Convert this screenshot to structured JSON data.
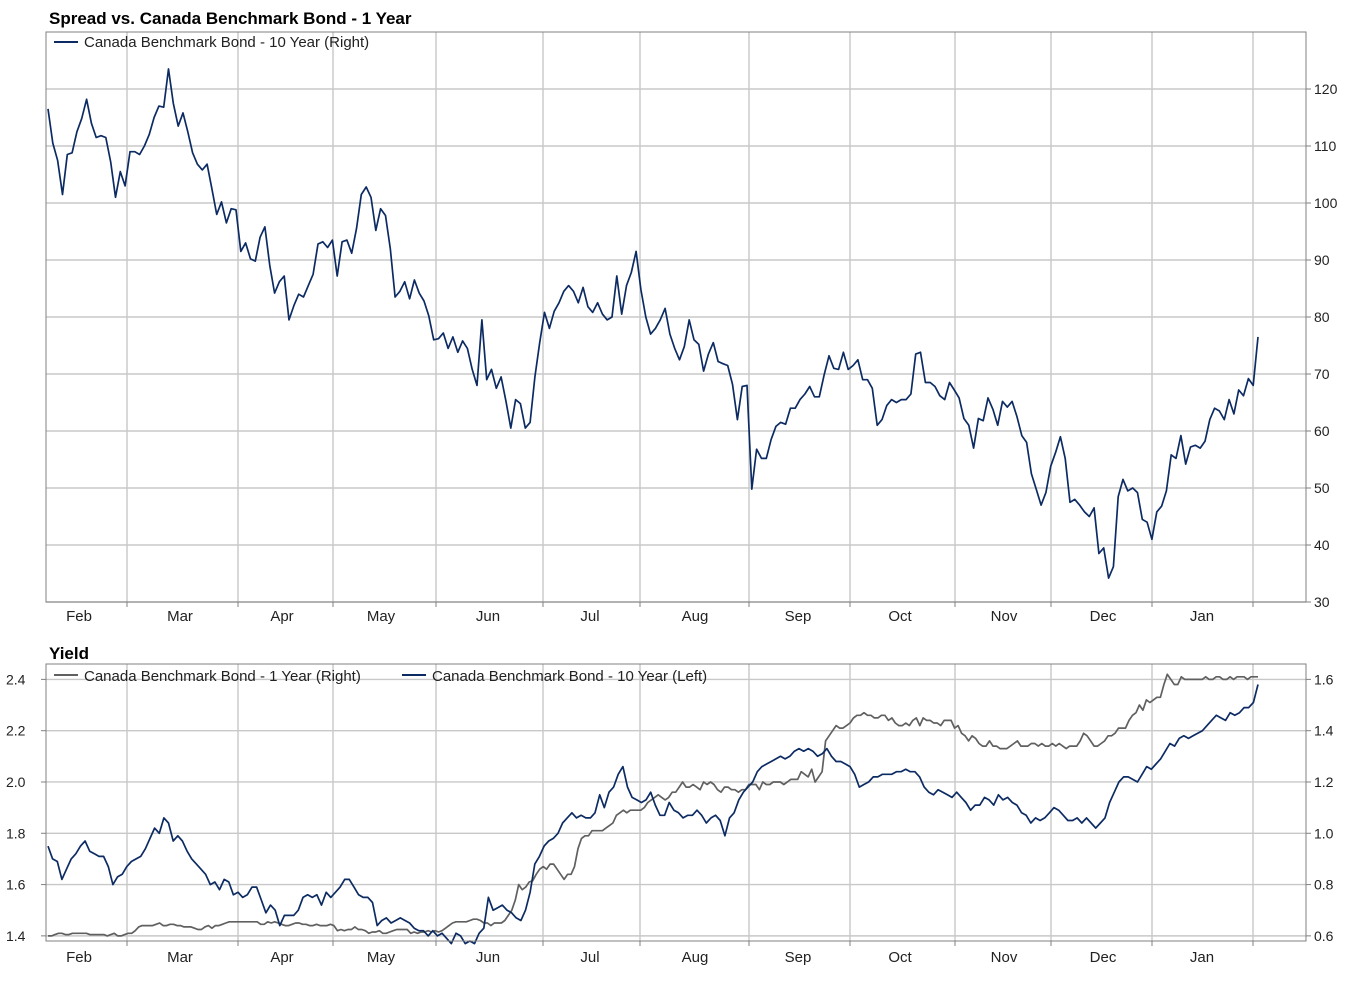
{
  "charts": [
    {
      "title": "Spread vs. Canada Benchmark Bond - 1 Year",
      "legend": [
        "Canada Benchmark Bond - 10 Year (Right)"
      ]
    },
    {
      "title": "Yield",
      "legend": [
        "Canada Benchmark Bond - 1 Year (Right)",
        "Canada Benchmark Bond - 10 Year (Left)"
      ]
    }
  ],
  "colors": {
    "navy": "#0d2b63",
    "gray": "#606060",
    "grid": "#c8c8c8",
    "axis": "#808080"
  },
  "chart_data": [
    {
      "type": "line",
      "title": "Spread vs. Canada Benchmark Bond - 1 Year",
      "xlabel": "",
      "ylabel": "",
      "x_ticks": [
        "Feb",
        "Mar",
        "Apr",
        "May",
        "Jun",
        "Jul",
        "Aug",
        "Sep",
        "Oct",
        "Nov",
        "Dec",
        "Jan"
      ],
      "right_axis": {
        "ticks": [
          30,
          40,
          50,
          60,
          70,
          80,
          90,
          100,
          110,
          120
        ],
        "range": [
          30,
          130
        ]
      },
      "grid": true,
      "legend_position": "top-left",
      "series": [
        {
          "name": "Canada Benchmark Bond - 10 Year (Right)",
          "axis": "right",
          "color": "#0d2b63",
          "values": [
            116.5,
            110.5,
            107.5,
            101.5,
            108.5,
            108.8,
            112.5,
            114.8,
            118.2,
            114,
            111.5,
            111.8,
            111.5,
            107.2,
            101,
            105.5,
            103,
            109,
            109,
            108.5,
            110,
            112,
            115,
            117,
            116.8,
            123.5,
            117.5,
            113.5,
            115.8,
            112.5,
            108.8,
            106.8,
            105.8,
            106.8,
            102.5,
            98,
            100.2,
            96.5,
            99,
            98.8,
            91.5,
            93,
            90.2,
            89.8,
            94,
            95.8,
            89,
            84.2,
            86.2,
            87.2,
            79.5,
            82,
            84,
            83.5,
            85.5,
            87.5,
            92.8,
            93.2,
            92.2,
            93.5,
            87.2,
            93.2,
            93.5,
            91.2,
            95.5,
            101.5,
            102.8,
            101,
            95.2,
            99,
            97.8,
            92,
            83.5,
            84.5,
            86.2,
            83.2,
            86.5,
            84.2,
            82.8,
            80.2,
            76,
            76.2,
            77.2,
            74.5,
            76.5,
            73.8,
            75.8,
            74.5,
            70.8,
            68,
            79.5,
            69,
            70.8,
            67.5,
            69.5,
            65.2,
            60.5,
            65.5,
            64.8,
            60.5,
            61.5,
            69.5,
            75.5,
            80.8,
            78,
            81,
            82.5,
            84.5,
            85.5,
            84.5,
            82.5,
            85.2,
            81.8,
            80.8,
            82.5,
            80.5,
            79.5,
            80,
            87.2,
            80.5,
            85.5,
            87.8,
            91.5,
            84.8,
            80,
            77,
            78,
            79.5,
            81.5,
            77,
            74.5,
            72.5,
            74.8,
            79.5,
            76,
            75.2,
            70.5,
            73.5,
            75.5,
            72.2,
            71.8,
            71.5,
            68.2,
            62,
            67.8,
            68,
            49.8,
            56.8,
            55.2,
            55.2,
            58.5,
            60.8,
            61.5,
            61.2,
            64,
            64,
            65.5,
            66.5,
            67.8,
            66,
            66,
            69.8,
            73.2,
            71,
            70.8,
            73.8,
            70.8,
            71.5,
            72.5,
            69,
            69,
            67.5,
            61,
            62,
            64.5,
            65.5,
            65,
            65.5,
            65.5,
            66.5,
            73.5,
            73.8,
            68.5,
            68.5,
            67.8,
            66.2,
            65.5,
            68.5,
            67.2,
            65.8,
            62.2,
            61,
            57,
            62.2,
            61.8,
            65.8,
            63.8,
            61,
            65.2,
            64.2,
            65.2,
            62.5,
            59.2,
            58,
            52.5,
            49.8,
            47,
            49.2,
            53.8,
            56.2,
            59,
            55.2,
            47.5,
            48,
            47,
            45.8,
            45,
            46.5,
            38.5,
            39.5,
            34.2,
            36.2,
            48.5,
            51.5,
            49.5,
            50,
            49.2,
            44.5,
            44,
            41,
            45.8,
            46.8,
            49.5,
            55.8,
            55.2,
            59.2,
            54.2,
            57.2,
            57.5,
            57,
            58.2,
            62,
            64,
            63.5,
            62,
            65.5,
            63,
            67.2,
            66.2,
            69.2,
            68,
            76.5
          ]
        }
      ]
    },
    {
      "type": "line",
      "title": "Yield",
      "xlabel": "",
      "ylabel": "",
      "x_ticks": [
        "Feb",
        "Mar",
        "Apr",
        "May",
        "Jun",
        "Jul",
        "Aug",
        "Sep",
        "Oct",
        "Nov",
        "Dec",
        "Jan"
      ],
      "left_axis": {
        "ticks": [
          1.4,
          1.6,
          1.8,
          2.0,
          2.2,
          2.4
        ],
        "range": [
          1.38,
          2.46
        ]
      },
      "right_axis": {
        "ticks": [
          0.6,
          0.8,
          1.0,
          1.2,
          1.4,
          1.6
        ],
        "range": [
          0.58,
          1.66
        ]
      },
      "grid": true,
      "legend_position": "top-left",
      "series": [
        {
          "name": "Canada Benchmark Bond - 1 Year (Right)",
          "axis": "right",
          "color": "#606060",
          "values": [
            0.6,
            0.6,
            0.605,
            0.61,
            0.61,
            0.605,
            0.605,
            0.61,
            0.61,
            0.61,
            0.61,
            0.61,
            0.605,
            0.605,
            0.605,
            0.605,
            0.605,
            0.6,
            0.605,
            0.61,
            0.6,
            0.6,
            0.605,
            0.61,
            0.61,
            0.62,
            0.635,
            0.64,
            0.64,
            0.64,
            0.64,
            0.645,
            0.65,
            0.64,
            0.64,
            0.645,
            0.645,
            0.64,
            0.64,
            0.635,
            0.635,
            0.635,
            0.63,
            0.625,
            0.625,
            0.635,
            0.64,
            0.63,
            0.64,
            0.64,
            0.645,
            0.65,
            0.655,
            0.655,
            0.655,
            0.655,
            0.655,
            0.655,
            0.655,
            0.655,
            0.655,
            0.645,
            0.645,
            0.655,
            0.65,
            0.655,
            0.65,
            0.645,
            0.64,
            0.64,
            0.645,
            0.65,
            0.65,
            0.645,
            0.645,
            0.64,
            0.64,
            0.645,
            0.64,
            0.64,
            0.64,
            0.645,
            0.64,
            0.62,
            0.625,
            0.62,
            0.625,
            0.625,
            0.635,
            0.625,
            0.625,
            0.62,
            0.61,
            0.615,
            0.615,
            0.62,
            0.61,
            0.61,
            0.615,
            0.62,
            0.625,
            0.625,
            0.625,
            0.625,
            0.61,
            0.615,
            0.61,
            0.615,
            0.615,
            0.62,
            0.615,
            0.62,
            0.615,
            0.62,
            0.63,
            0.64,
            0.65,
            0.655,
            0.655,
            0.655,
            0.655,
            0.66,
            0.665,
            0.665,
            0.66,
            0.65,
            0.65,
            0.64,
            0.65,
            0.65,
            0.65,
            0.66,
            0.68,
            0.7,
            0.74,
            0.8,
            0.78,
            0.79,
            0.81,
            0.815,
            0.84,
            0.86,
            0.87,
            0.86,
            0.88,
            0.88,
            0.86,
            0.84,
            0.82,
            0.84,
            0.84,
            0.87,
            0.94,
            0.98,
            0.99,
            0.99,
            1.01,
            1.01,
            1.01,
            1.01,
            1.02,
            1.03,
            1.04,
            1.07,
            1.08,
            1.09,
            1.08,
            1.09,
            1.09,
            1.09,
            1.09,
            1.1,
            1.12,
            1.13,
            1.14,
            1.15,
            1.14,
            1.13,
            1.14,
            1.16,
            1.16,
            1.18,
            1.2,
            1.18,
            1.18,
            1.19,
            1.18,
            1.17,
            1.2,
            1.19,
            1.2,
            1.19,
            1.17,
            1.16,
            1.18,
            1.18,
            1.17,
            1.17,
            1.16,
            1.17,
            1.17,
            1.19,
            1.19,
            1.19,
            1.17,
            1.2,
            1.19,
            1.19,
            1.2,
            1.2,
            1.2,
            1.19,
            1.2,
            1.21,
            1.21,
            1.21,
            1.24,
            1.23,
            1.22,
            1.25,
            1.2,
            1.22,
            1.24,
            1.36,
            1.38,
            1.4,
            1.42,
            1.41,
            1.41,
            1.42,
            1.43,
            1.45,
            1.46,
            1.46,
            1.47,
            1.46,
            1.46,
            1.45,
            1.45,
            1.46,
            1.46,
            1.44,
            1.45,
            1.43,
            1.42,
            1.42,
            1.43,
            1.42,
            1.44,
            1.45,
            1.42,
            1.45,
            1.44,
            1.44,
            1.43,
            1.43,
            1.42,
            1.44,
            1.44,
            1.44,
            1.41,
            1.42,
            1.39,
            1.38,
            1.36,
            1.38,
            1.37,
            1.35,
            1.34,
            1.34,
            1.36,
            1.34,
            1.34,
            1.33,
            1.33,
            1.33,
            1.34,
            1.35,
            1.36,
            1.34,
            1.34,
            1.34,
            1.35,
            1.35,
            1.34,
            1.35,
            1.34,
            1.34,
            1.35,
            1.34,
            1.35,
            1.34,
            1.33,
            1.34,
            1.34,
            1.34,
            1.36,
            1.39,
            1.38,
            1.36,
            1.34,
            1.34,
            1.35,
            1.36,
            1.38,
            1.38,
            1.39,
            1.41,
            1.41,
            1.41,
            1.44,
            1.46,
            1.47,
            1.5,
            1.48,
            1.52,
            1.51,
            1.52,
            1.53,
            1.53,
            1.58,
            1.62,
            1.6,
            1.58,
            1.58,
            1.61,
            1.6,
            1.6,
            1.6,
            1.6,
            1.6,
            1.6,
            1.61,
            1.6,
            1.6,
            1.61,
            1.61,
            1.6,
            1.6,
            1.61,
            1.6,
            1.61,
            1.61,
            1.61,
            1.6,
            1.61,
            1.61,
            1.61
          ]
        },
        {
          "name": "Canada Benchmark Bond - 10 Year (Left)",
          "axis": "left",
          "color": "#0d2b63",
          "values": [
            1.75,
            1.7,
            1.69,
            1.62,
            1.66,
            1.7,
            1.72,
            1.75,
            1.77,
            1.73,
            1.72,
            1.71,
            1.71,
            1.67,
            1.6,
            1.63,
            1.64,
            1.67,
            1.69,
            1.7,
            1.71,
            1.74,
            1.78,
            1.82,
            1.8,
            1.86,
            1.84,
            1.77,
            1.79,
            1.77,
            1.73,
            1.7,
            1.68,
            1.66,
            1.64,
            1.6,
            1.61,
            1.58,
            1.62,
            1.61,
            1.56,
            1.57,
            1.55,
            1.56,
            1.59,
            1.59,
            1.54,
            1.49,
            1.52,
            1.5,
            1.44,
            1.48,
            1.48,
            1.48,
            1.5,
            1.55,
            1.56,
            1.55,
            1.56,
            1.52,
            1.57,
            1.55,
            1.57,
            1.59,
            1.62,
            1.62,
            1.59,
            1.56,
            1.55,
            1.55,
            1.53,
            1.44,
            1.46,
            1.47,
            1.45,
            1.46,
            1.47,
            1.46,
            1.45,
            1.43,
            1.42,
            1.42,
            1.4,
            1.42,
            1.4,
            1.41,
            1.39,
            1.37,
            1.41,
            1.4,
            1.37,
            1.38,
            1.37,
            1.41,
            1.43,
            1.55,
            1.5,
            1.51,
            1.52,
            1.5,
            1.49,
            1.47,
            1.46,
            1.5,
            1.57,
            1.68,
            1.71,
            1.75,
            1.77,
            1.78,
            1.8,
            1.84,
            1.86,
            1.88,
            1.86,
            1.87,
            1.86,
            1.86,
            1.88,
            1.95,
            1.9,
            1.96,
            1.98,
            2.03,
            2.06,
            1.98,
            1.94,
            1.93,
            1.92,
            1.93,
            1.96,
            1.91,
            1.87,
            1.87,
            1.92,
            1.89,
            1.88,
            1.86,
            1.87,
            1.87,
            1.89,
            1.87,
            1.84,
            1.86,
            1.87,
            1.85,
            1.79,
            1.86,
            1.88,
            1.93,
            1.96,
            1.98,
            2.0,
            2.04,
            2.06,
            2.07,
            2.08,
            2.09,
            2.1,
            2.09,
            2.1,
            2.12,
            2.13,
            2.12,
            2.13,
            2.12,
            2.1,
            2.11,
            2.13,
            2.1,
            2.08,
            2.08,
            2.07,
            2.06,
            2.03,
            1.98,
            1.99,
            2.0,
            2.02,
            2.02,
            2.03,
            2.03,
            2.03,
            2.04,
            2.04,
            2.05,
            2.04,
            2.04,
            2.02,
            1.98,
            1.96,
            1.95,
            1.97,
            1.96,
            1.95,
            1.94,
            1.96,
            1.94,
            1.92,
            1.89,
            1.91,
            1.91,
            1.94,
            1.93,
            1.91,
            1.95,
            1.93,
            1.94,
            1.92,
            1.91,
            1.88,
            1.87,
            1.84,
            1.86,
            1.85,
            1.86,
            1.88,
            1.9,
            1.89,
            1.87,
            1.85,
            1.85,
            1.86,
            1.84,
            1.86,
            1.84,
            1.82,
            1.84,
            1.86,
            1.92,
            1.96,
            2.0,
            2.02,
            2.02,
            2.01,
            2.0,
            2.03,
            2.06,
            2.05,
            2.07,
            2.09,
            2.12,
            2.15,
            2.14,
            2.17,
            2.18,
            2.17,
            2.18,
            2.19,
            2.2,
            2.22,
            2.24,
            2.26,
            2.25,
            2.24,
            2.27,
            2.26,
            2.27,
            2.29,
            2.29,
            2.31,
            2.38
          ]
        }
      ]
    }
  ]
}
